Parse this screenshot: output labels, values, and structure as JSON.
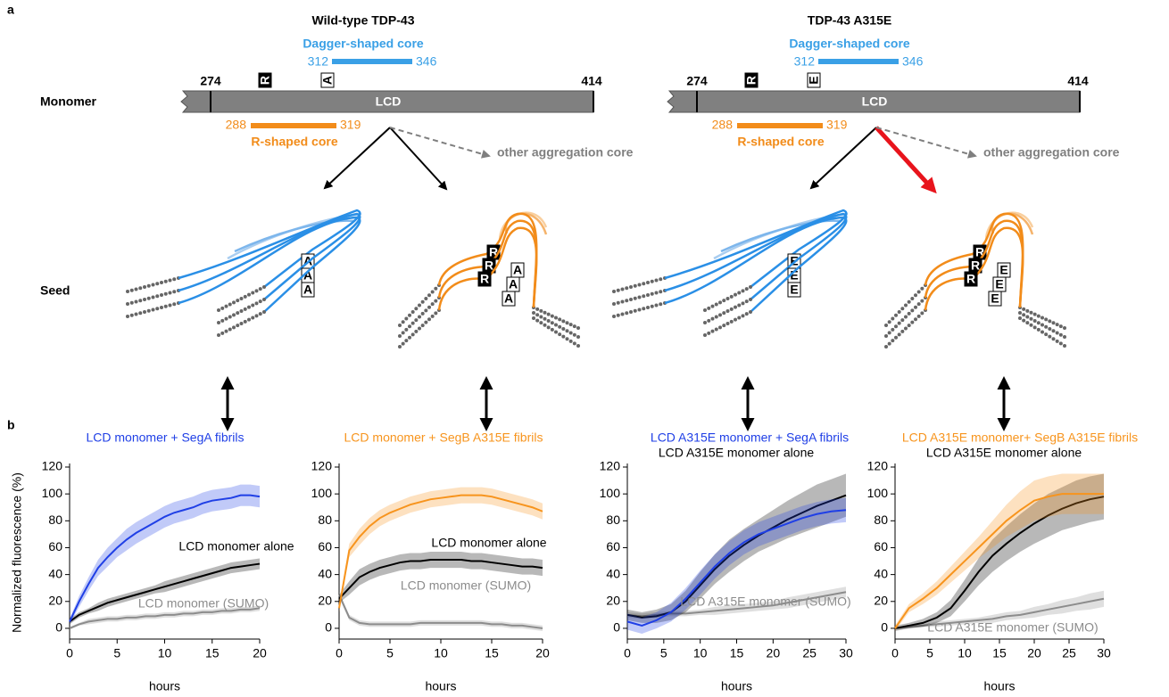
{
  "figure": {
    "panel_labels": [
      "a",
      "b"
    ],
    "row_labels": [
      "Monomer",
      "Seed"
    ],
    "constructs": [
      {
        "title": "Wild-type TDP-43",
        "dagger_core": "Dagger-shaped core",
        "dagger_range": [
          312,
          346
        ],
        "domain": "LCD",
        "domain_range": [
          274,
          414
        ],
        "residues": [
          "R",
          "A"
        ],
        "r_core": "R-shaped core",
        "r_range": [
          288,
          319
        ],
        "other": "other aggregation core"
      },
      {
        "title": "TDP-43 A315E",
        "dagger_core": "Dagger-shaped core",
        "dagger_range": [
          312,
          346
        ],
        "domain": "LCD",
        "domain_range": [
          274,
          414
        ],
        "residues": [
          "R",
          "E"
        ],
        "r_core": "R-shaped core",
        "r_range": [
          288,
          319
        ],
        "other": "other aggregation core"
      }
    ]
  },
  "chart_data": [
    {
      "type": "line",
      "ylabel": "Normalized fluorescence (%)",
      "xlabel": "hours",
      "x": [
        0,
        1,
        2,
        3,
        4,
        5,
        6,
        7,
        8,
        9,
        10,
        11,
        12,
        13,
        14,
        15,
        16,
        17,
        18,
        19,
        20
      ],
      "xlim": [
        0,
        20
      ],
      "xticks": [
        0,
        5,
        10,
        15,
        20
      ],
      "ylim": [
        -8,
        120
      ],
      "yticks": [
        0,
        20,
        40,
        60,
        80,
        100,
        120
      ],
      "series": [
        {
          "name": "LCD monomer + SegA fibrils",
          "color": "#1f3fe6",
          "values": [
            5,
            20,
            33,
            45,
            53,
            60,
            66,
            71,
            75,
            79,
            83,
            86,
            88,
            90,
            93,
            95,
            96,
            97,
            99,
            99,
            98
          ],
          "errors": [
            2,
            4,
            5,
            6,
            7,
            7,
            8,
            8,
            8,
            8,
            8,
            8,
            8,
            8,
            8,
            8,
            8,
            8,
            8,
            8,
            8
          ]
        },
        {
          "name": "LCD monomer alone",
          "color": "#000000",
          "values": [
            5,
            10,
            13,
            16,
            19,
            21,
            23,
            25,
            27,
            29,
            31,
            33,
            35,
            37,
            39,
            41,
            43,
            45,
            46,
            47,
            48
          ],
          "errors": [
            2,
            2,
            2,
            3,
            3,
            3,
            3,
            3,
            3,
            3,
            4,
            4,
            4,
            4,
            4,
            4,
            4,
            4,
            4,
            4,
            4
          ]
        },
        {
          "name": "LCD monomer (SUMO)",
          "color": "#8c8c8c",
          "values": [
            0,
            3,
            5,
            6,
            7,
            7,
            8,
            8,
            9,
            9,
            10,
            10,
            11,
            11,
            12,
            12,
            13,
            13,
            14,
            14,
            15
          ],
          "errors": [
            1,
            1,
            2,
            2,
            2,
            2,
            2,
            2,
            2,
            2,
            2,
            2,
            2,
            2,
            2,
            2,
            2,
            2,
            2,
            2,
            2
          ]
        }
      ]
    },
    {
      "type": "line",
      "xlabel": "hours",
      "x": [
        0,
        1,
        2,
        3,
        4,
        5,
        6,
        7,
        8,
        9,
        10,
        11,
        12,
        13,
        14,
        15,
        16,
        17,
        18,
        19,
        20
      ],
      "xlim": [
        0,
        20
      ],
      "xticks": [
        0,
        5,
        10,
        15,
        20
      ],
      "ylim": [
        -8,
        120
      ],
      "yticks": [
        0,
        20,
        40,
        60,
        80,
        100,
        120
      ],
      "series": [
        {
          "name": "LCD monomer + SegB A315E fibrils",
          "color": "#f7941d",
          "values": [
            15,
            58,
            68,
            76,
            82,
            86,
            89,
            92,
            94,
            96,
            97,
            98,
            99,
            99,
            99,
            98,
            96,
            94,
            92,
            90,
            87
          ],
          "errors": [
            3,
            5,
            6,
            6,
            6,
            6,
            6,
            6,
            6,
            6,
            6,
            6,
            6,
            6,
            6,
            6,
            6,
            6,
            6,
            6,
            6
          ]
        },
        {
          "name": "LCD monomer alone",
          "color": "#000000",
          "values": [
            22,
            30,
            38,
            42,
            45,
            47,
            49,
            50,
            50,
            51,
            51,
            51,
            51,
            50,
            50,
            49,
            48,
            47,
            46,
            46,
            45
          ],
          "errors": [
            3,
            5,
            6,
            6,
            6,
            6,
            6,
            6,
            6,
            6,
            6,
            6,
            6,
            6,
            6,
            6,
            6,
            6,
            6,
            6,
            6
          ]
        },
        {
          "name": "LCD monomer (SUMO)",
          "color": "#8c8c8c",
          "values": [
            25,
            8,
            4,
            3,
            3,
            3,
            3,
            3,
            4,
            4,
            4,
            4,
            4,
            4,
            4,
            3,
            3,
            2,
            2,
            1,
            0
          ],
          "errors": [
            2,
            2,
            2,
            2,
            2,
            2,
            2,
            2,
            2,
            2,
            2,
            2,
            2,
            2,
            2,
            2,
            2,
            2,
            2,
            2,
            2
          ]
        }
      ]
    },
    {
      "type": "line",
      "xlabel": "hours",
      "x": [
        0,
        2,
        4,
        6,
        8,
        10,
        12,
        14,
        16,
        18,
        20,
        22,
        24,
        26,
        28,
        30
      ],
      "xlim": [
        0,
        30
      ],
      "xticks": [
        0,
        5,
        10,
        15,
        20,
        25,
        30
      ],
      "ylim": [
        -8,
        120
      ],
      "yticks": [
        0,
        20,
        40,
        60,
        80,
        100,
        120
      ],
      "series": [
        {
          "name": "LCD A315E monomer + SegA fibrils",
          "color": "#1f3fe6",
          "values": [
            5,
            2,
            6,
            12,
            22,
            34,
            46,
            56,
            64,
            70,
            74,
            78,
            82,
            85,
            87,
            88
          ],
          "errors": [
            6,
            6,
            6,
            7,
            8,
            9,
            9,
            9,
            9,
            9,
            9,
            9,
            9,
            9,
            9,
            9
          ]
        },
        {
          "name": "LCD A315E monomer alone",
          "color": "#000000",
          "values": [
            10,
            8,
            9,
            12,
            20,
            32,
            44,
            54,
            62,
            69,
            75,
            81,
            86,
            91,
            95,
            99
          ],
          "errors": [
            4,
            4,
            5,
            6,
            8,
            10,
            11,
            12,
            12,
            12,
            13,
            14,
            15,
            16,
            16,
            16
          ]
        },
        {
          "name": "LCD A315E monomer (SUMO)",
          "color": "#8c8c8c",
          "values": [
            10,
            9,
            10,
            11,
            11,
            12,
            13,
            14,
            15,
            16,
            17,
            19,
            21,
            23,
            25,
            27
          ],
          "errors": [
            2,
            2,
            2,
            2,
            2,
            2,
            3,
            3,
            3,
            3,
            3,
            4,
            4,
            4,
            4,
            4
          ]
        }
      ]
    },
    {
      "type": "line",
      "xlabel": "hours",
      "x": [
        0,
        2,
        4,
        6,
        8,
        10,
        12,
        14,
        16,
        18,
        20,
        22,
        24,
        26,
        28,
        30
      ],
      "xlim": [
        0,
        30
      ],
      "xticks": [
        0,
        5,
        10,
        15,
        20,
        25,
        30
      ],
      "ylim": [
        -8,
        120
      ],
      "yticks": [
        0,
        20,
        40,
        60,
        80,
        100,
        120
      ],
      "series": [
        {
          "name": "LCD A315E monomer+ SegB A315E fibrils",
          "color": "#f7941d",
          "values": [
            0,
            15,
            22,
            30,
            40,
            50,
            60,
            70,
            80,
            88,
            95,
            98,
            100,
            100,
            100,
            100
          ],
          "errors": [
            2,
            3,
            4,
            5,
            6,
            7,
            8,
            10,
            12,
            14,
            15,
            15,
            15,
            15,
            15,
            15
          ]
        },
        {
          "name": "LCD A315E monomer alone",
          "color": "#000000",
          "values": [
            0,
            2,
            4,
            8,
            15,
            28,
            42,
            54,
            63,
            71,
            78,
            84,
            89,
            93,
            96,
            98
          ],
          "errors": [
            2,
            2,
            3,
            4,
            6,
            8,
            10,
            12,
            13,
            14,
            15,
            16,
            16,
            17,
            17,
            17
          ]
        },
        {
          "name": "LCD A315E monomer (SUMO)",
          "color": "#8c8c8c",
          "values": [
            0,
            1,
            2,
            3,
            4,
            5,
            6,
            7,
            9,
            10,
            12,
            14,
            16,
            18,
            20,
            22
          ],
          "errors": [
            1,
            1,
            1,
            2,
            2,
            2,
            2,
            3,
            3,
            3,
            4,
            4,
            5,
            5,
            6,
            6
          ]
        }
      ]
    }
  ]
}
